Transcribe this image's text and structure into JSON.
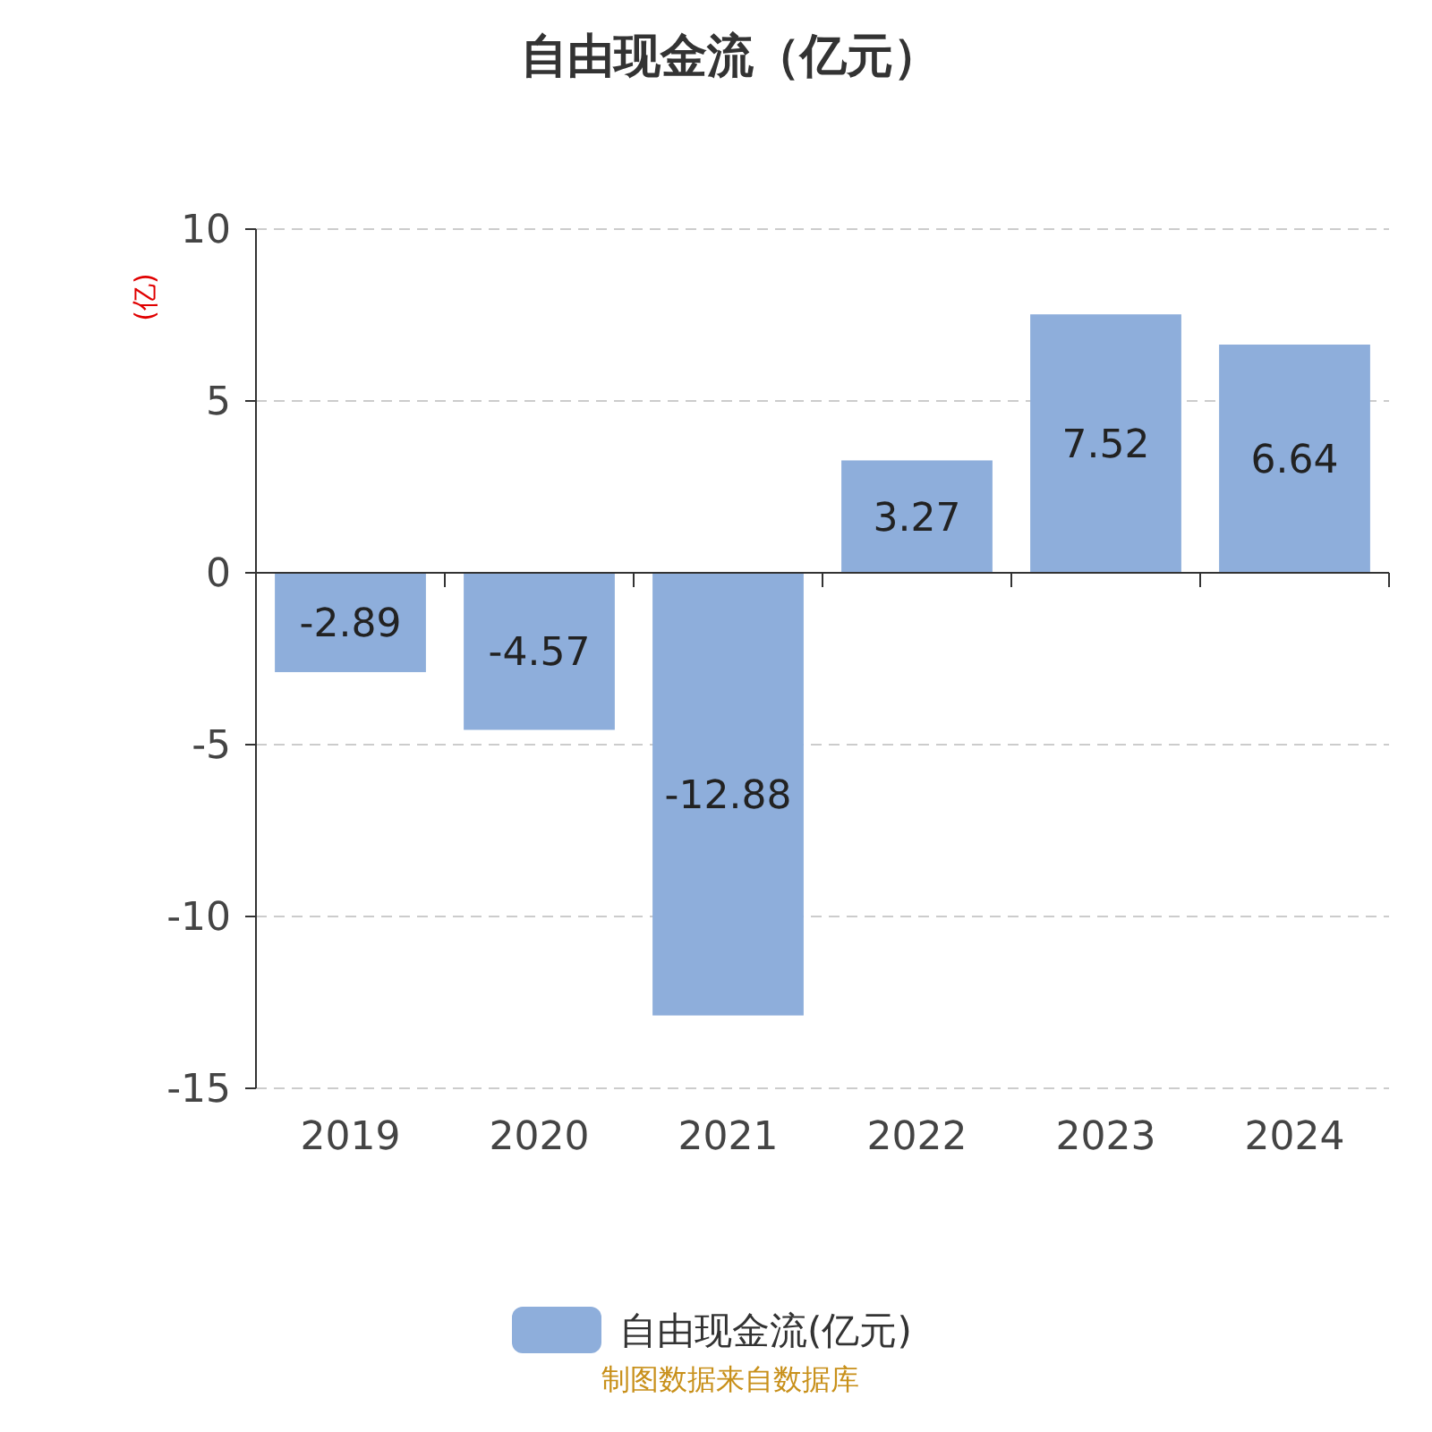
{
  "chart_data": {
    "type": "bar",
    "title": "自由现金流（亿元）",
    "ylabel": "(亿)",
    "categories": [
      "2019",
      "2020",
      "2021",
      "2022",
      "2023",
      "2024"
    ],
    "series": [
      {
        "name": "自由现金流(亿元)",
        "color": "#8eaedb",
        "values": [
          -2.89,
          -4.57,
          -12.88,
          3.27,
          7.52,
          6.64
        ]
      }
    ],
    "ylim": [
      -15,
      10
    ],
    "yticks": [
      -15,
      -10,
      -5,
      0,
      5,
      10
    ],
    "grid": "y",
    "legend": "bottom",
    "data_labels": true,
    "annotations": [
      "制图数据来自数据库"
    ]
  }
}
